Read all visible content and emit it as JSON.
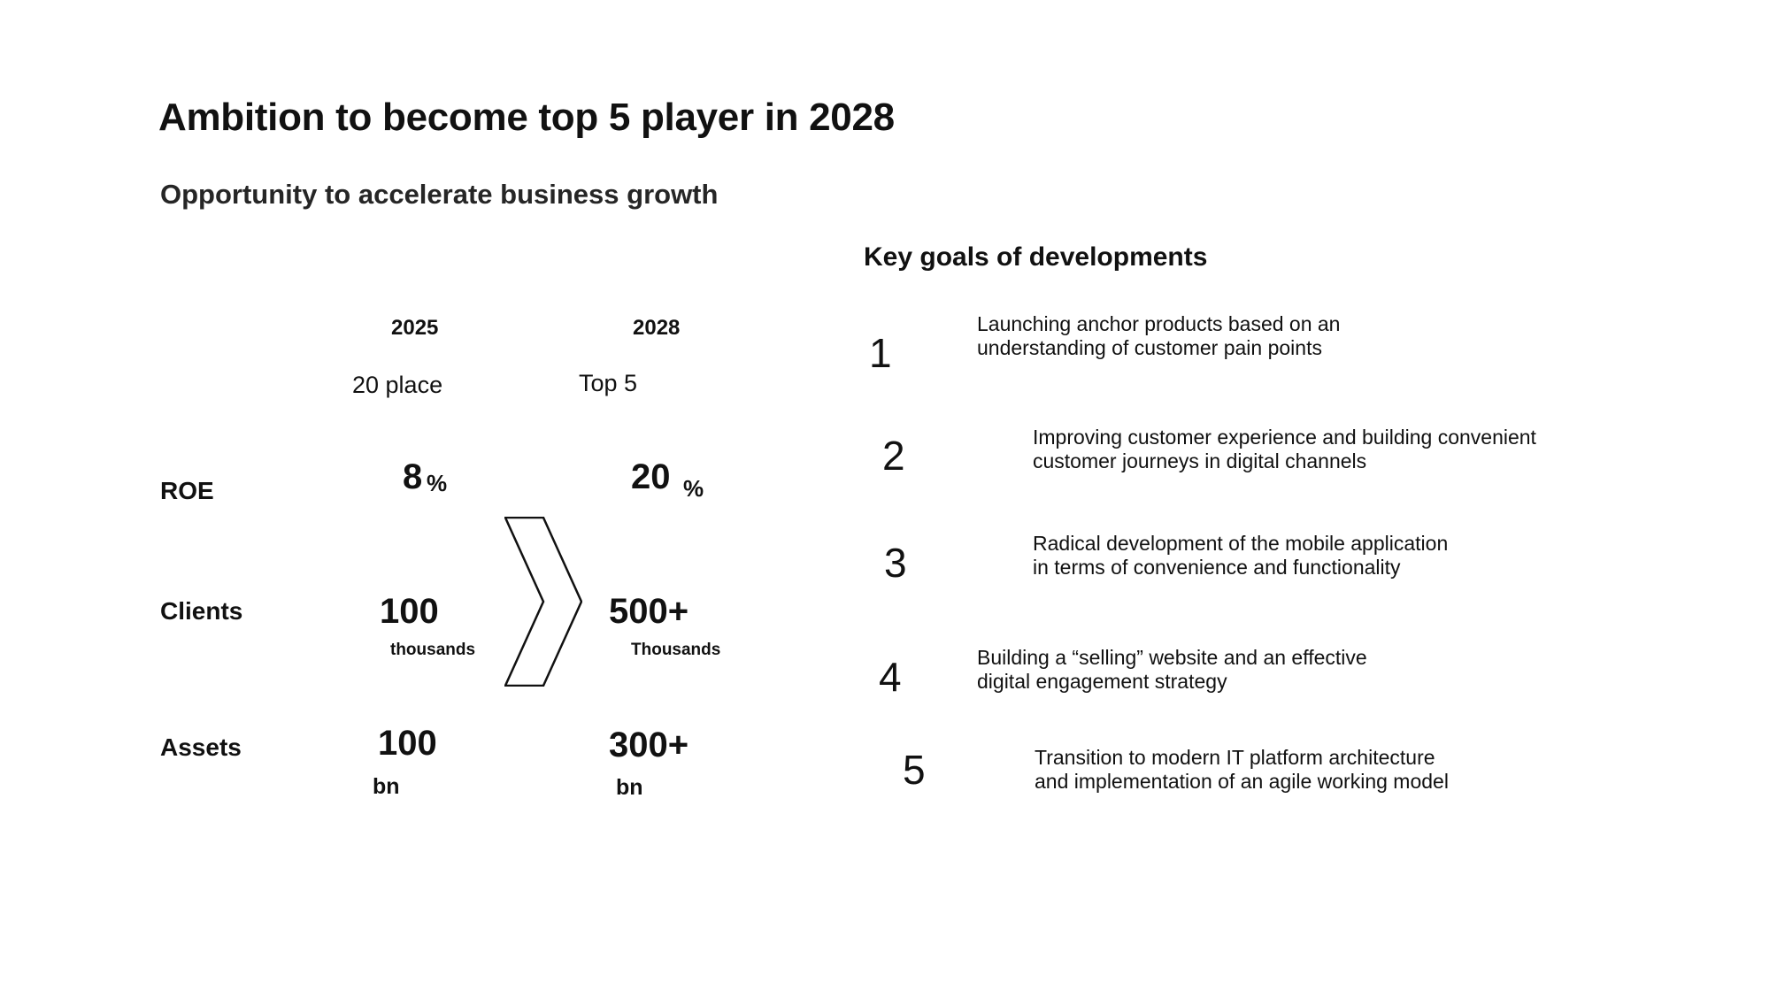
{
  "title": "Ambition to become top 5 player in 2028",
  "subtitle": "Opportunity to accelerate business growth",
  "comparison": {
    "years": {
      "from": "2025",
      "to": "2028"
    },
    "ranks": {
      "from": "20 place",
      "to": "Top 5"
    },
    "roe": {
      "label": "ROE",
      "from_value": "8",
      "from_unit": "%",
      "to_value": "20",
      "to_unit": "%"
    },
    "clients": {
      "label": "Clients",
      "from_value": "100",
      "from_unit": "thousands",
      "to_value": "500+",
      "to_unit": "Thousands"
    },
    "assets": {
      "label": "Assets",
      "from_value": "100",
      "from_unit": "bn",
      "to_value": "300+",
      "to_unit": "bn"
    },
    "arrow_icon": "chevron-right-icon"
  },
  "goals": {
    "heading": "Key goals of developments",
    "items": [
      {
        "number": "1",
        "lines": [
          "Launching anchor products based on an",
          "understanding of customer pain points"
        ]
      },
      {
        "number": "2",
        "lines": [
          "Improving customer experience and building convenient",
          "customer journeys in digital channels"
        ]
      },
      {
        "number": "3",
        "lines": [
          "Radical development of the mobile application",
          "in terms of convenience and functionality"
        ]
      },
      {
        "number": "4",
        "lines": [
          "Building a “selling” website and an effective",
          "digital engagement strategy"
        ]
      },
      {
        "number": "5",
        "lines": [
          "Transition to modern IT platform architecture",
          "and implementation of an agile working model"
        ]
      }
    ]
  }
}
